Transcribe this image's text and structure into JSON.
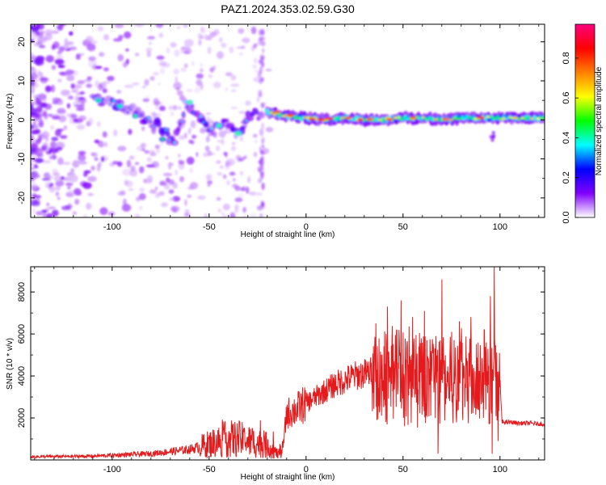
{
  "title": "PAZ1.2024.353.02.59.G30",
  "chart_data": [
    {
      "type": "heatmap",
      "name": "spectrogram",
      "xlabel": "Height of straight line (km)",
      "ylabel": "Frequency (Hz)",
      "xlim": [
        -142,
        123
      ],
      "ylim": [
        -25,
        24.5
      ],
      "xticks": [
        -100,
        -50,
        0,
        50,
        100
      ],
      "yticks": [
        -20,
        -10,
        0,
        10,
        20
      ],
      "colorbar": {
        "label": "Normalized spectral amplitude",
        "range": [
          0,
          0.97
        ],
        "ticks": [
          0.0,
          0.2,
          0.4,
          0.6,
          0.8
        ],
        "colors": [
          "#ffffff",
          "#8000ff",
          "#0000ff",
          "#00ffff",
          "#00ff00",
          "#ffff00",
          "#ff8000",
          "#ff0000",
          "#ff0080"
        ]
      },
      "ridge": {
        "x": [
          -107,
          -95,
          -85,
          -78,
          -72,
          -68,
          -62,
          -55,
          -48,
          -42,
          -35,
          -30,
          -20,
          -10,
          0,
          10,
          20,
          30,
          40,
          50,
          60,
          70,
          80,
          90,
          100,
          110,
          123
        ],
        "y": [
          5,
          4,
          1,
          -1,
          -3,
          -6,
          4,
          1,
          -3,
          -1,
          -4,
          1,
          2,
          1,
          0.5,
          0,
          0.5,
          0,
          0,
          0.5,
          0.5,
          0,
          0.5,
          0.5,
          0.5,
          0.5,
          0.5
        ]
      }
    },
    {
      "type": "line",
      "name": "snr",
      "xlabel": "Height of straight line (km)",
      "ylabel": "SNR (10 * v/v)",
      "xlim": [
        -142,
        123
      ],
      "ylim": [
        0,
        9200
      ],
      "xticks": [
        -100,
        -50,
        0,
        50,
        100
      ],
      "yticks": [
        2000,
        4000,
        6000,
        8000
      ],
      "color": "#e41a1c",
      "envelope": {
        "x": [
          -142,
          -110,
          -80,
          -60,
          -52,
          -45,
          -40,
          -35,
          -30,
          -25,
          -20,
          -15,
          -12,
          -10,
          -5,
          0,
          5,
          10,
          15,
          20,
          25,
          30,
          34,
          36,
          40,
          45,
          50,
          55,
          60,
          65,
          70,
          75,
          80,
          85,
          90,
          95,
          97,
          100,
          101,
          105,
          110,
          115,
          123
        ],
        "y": [
          150,
          180,
          300,
          500,
          700,
          900,
          1000,
          1000,
          900,
          800,
          700,
          300,
          500,
          2200,
          2400,
          2700,
          3000,
          3300,
          3600,
          3800,
          4000,
          4100,
          4200,
          4000,
          4000,
          3900,
          3900,
          3900,
          3900,
          3900,
          3800,
          3800,
          3800,
          3900,
          3800,
          3700,
          3700,
          3900,
          1800,
          1800,
          1750,
          1750,
          1700
        ]
      },
      "peaks": [
        {
          "x": 36,
          "y": 6500
        },
        {
          "x": 42,
          "y": 7300
        },
        {
          "x": 49,
          "y": 7600
        },
        {
          "x": 55,
          "y": 6800
        },
        {
          "x": 61,
          "y": 7100
        },
        {
          "x": 67,
          "y": 5900
        },
        {
          "x": 70,
          "y": 8600
        },
        {
          "x": 75,
          "y": 6100
        },
        {
          "x": 79,
          "y": 6600
        },
        {
          "x": 85,
          "y": 6800
        },
        {
          "x": 92,
          "y": 6200
        },
        {
          "x": 95,
          "y": 7800
        },
        {
          "x": 97,
          "y": 9200
        },
        {
          "x": 99,
          "y": 6500
        }
      ],
      "dips": [
        {
          "x": 68,
          "y": 300
        },
        {
          "x": 96,
          "y": 300
        },
        {
          "x": 99,
          "y": 900
        }
      ]
    }
  ]
}
